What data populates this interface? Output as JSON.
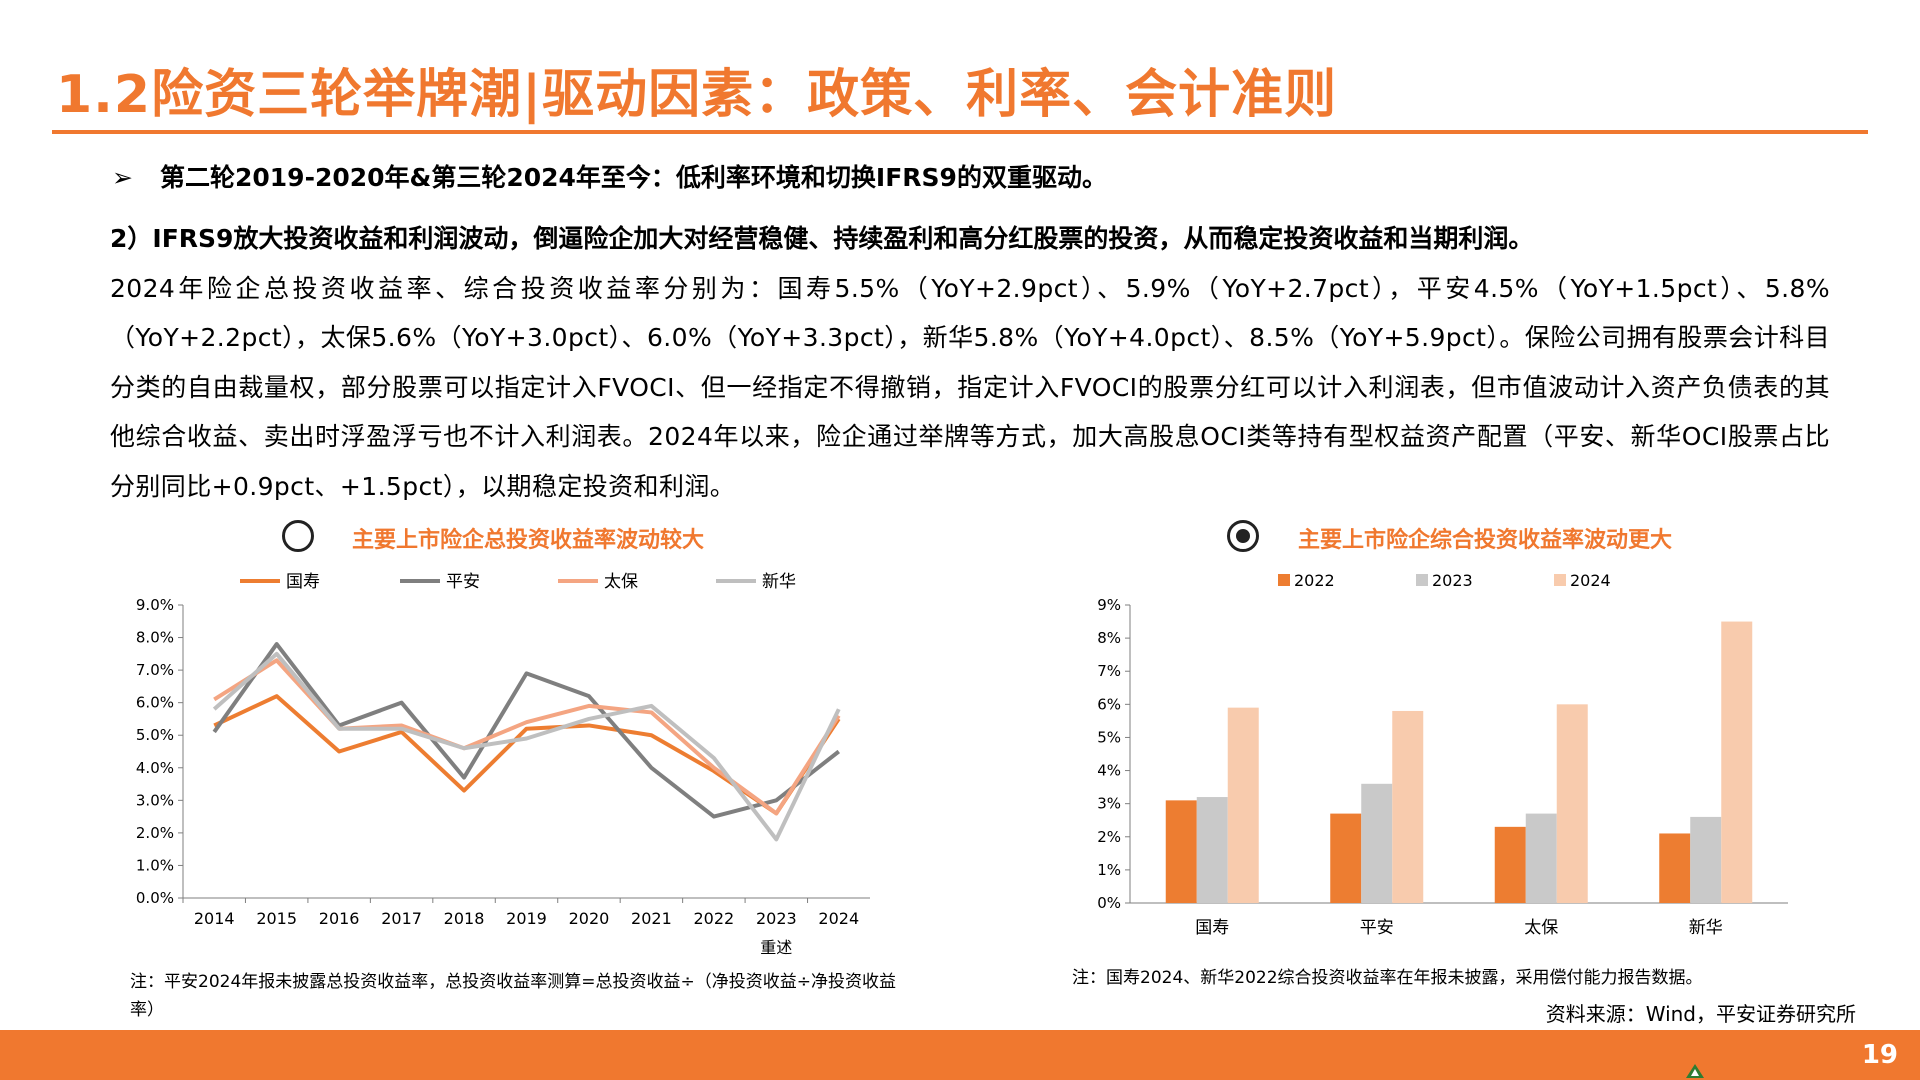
{
  "header": {
    "title": "1.2险资三轮举牌潮|驱动因素：政策、利率、会计准则"
  },
  "bullet": {
    "marker": "➢",
    "text": "第二轮2019-2020年&第三轮2024年至今：低利率环境和切换IFRS9的双重驱动。"
  },
  "body": {
    "lead": "2）IFRS9放大投资收益和利润波动，倒逼险企加大对经营稳健、持续盈利和高分红股票的投资，从而稳定投资收益和当期利润。",
    "para": "2024年险企总投资收益率、综合投资收益率分别为：国寿5.5%（YoY+2.9pct）、5.9%（YoY+2.7pct），平安4.5%（YoY+1.5pct）、5.8%（YoY+2.2pct），太保5.6%（YoY+3.0pct）、6.0%（YoY+3.3pct），新华5.8%（YoY+4.0pct）、8.5%（YoY+5.9pct）。保险公司拥有股票会计科目分类的自由裁量权，部分股票可以指定计入FVOCI、但一经指定不得撤销，指定计入FVOCI的股票分红可以计入利润表，但市值波动计入资产负债表的其他综合收益、卖出时浮盈浮亏也不计入利润表。2024年以来，险企通过举牌等方式，加大高股息OCI类等持有型权益资产配置（平安、新华OCI股票占比分别同比+0.9pct、+1.5pct），以期稳定投资和利润。"
  },
  "left_chart": {
    "heading": "主要上市险企总投资收益率波动较大",
    "radio_selected": false,
    "note": "注：平安2024年报未披露总投资收益率，总投资收益率测算=总投资收益÷（净投资收益÷净投资收益率）"
  },
  "right_chart": {
    "heading": "主要上市险企综合投资收益率波动更大",
    "radio_selected": true,
    "note": "注：国寿2024、新华2022综合投资收益率在年报未披露，采用偿付能力报告数据。"
  },
  "source": "资料来源：Wind，平安证券研究所",
  "footer": {
    "page_number": "19"
  },
  "colors": {
    "accent": "#F0782F",
    "guoshou": "#ED7D31",
    "pingan": "#7F7F7F",
    "taibao": "#F4A582",
    "xinhua": "#BFBFBF",
    "bar2022": "#ED7D31",
    "bar2023": "#C9C9C9",
    "bar2024": "#F8CBAD"
  },
  "chart_data": [
    {
      "type": "line",
      "categories": [
        "2014",
        "2015",
        "2016",
        "2017",
        "2018",
        "2019",
        "2020",
        "2021",
        "2022",
        "2023\n重述",
        "2024"
      ],
      "series": [
        {
          "name": "国寿",
          "values": [
            5.3,
            6.2,
            4.5,
            5.1,
            3.3,
            5.2,
            5.3,
            5.0,
            3.9,
            2.6,
            5.5
          ]
        },
        {
          "name": "平安",
          "values": [
            5.1,
            7.8,
            5.3,
            6.0,
            3.7,
            6.9,
            6.2,
            4.0,
            2.5,
            3.0,
            4.5
          ]
        },
        {
          "name": "太保",
          "values": [
            6.1,
            7.3,
            5.2,
            5.3,
            4.6,
            5.4,
            5.9,
            5.7,
            4.0,
            2.6,
            5.6
          ]
        },
        {
          "name": "新华",
          "values": [
            5.8,
            7.5,
            5.2,
            5.2,
            4.6,
            4.9,
            5.5,
            5.9,
            4.3,
            1.8,
            5.8
          ]
        }
      ],
      "ylim": [
        0,
        9
      ],
      "yticks": [
        "0.0%",
        "1.0%",
        "2.0%",
        "3.0%",
        "4.0%",
        "5.0%",
        "6.0%",
        "7.0%",
        "8.0%",
        "9.0%"
      ],
      "legend": "top",
      "grid": false
    },
    {
      "type": "bar",
      "categories": [
        "国寿",
        "平安",
        "太保",
        "新华"
      ],
      "series": [
        {
          "name": "2022",
          "values": [
            3.1,
            2.7,
            2.3,
            2.1
          ]
        },
        {
          "name": "2023",
          "values": [
            3.2,
            3.6,
            2.7,
            2.6
          ]
        },
        {
          "name": "2024",
          "values": [
            5.9,
            5.8,
            6.0,
            8.5
          ]
        }
      ],
      "ylim": [
        0,
        9
      ],
      "yticks": [
        "0%",
        "1%",
        "2%",
        "3%",
        "4%",
        "5%",
        "6%",
        "7%",
        "8%",
        "9%"
      ],
      "legend": "top",
      "grid": false
    }
  ]
}
